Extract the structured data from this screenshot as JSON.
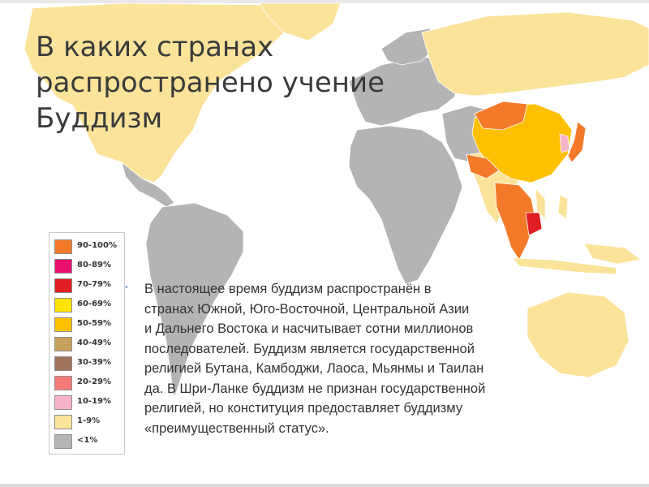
{
  "slide": {
    "title_lines": [
      "В каких странах",
      "распространено учение",
      "Буддизм"
    ],
    "bullet_char": "•",
    "paragraph_lines": [
      "В настоящее время буддизм распространён в",
      "странах Южной, Юго-Восточной, Центральной Азии",
      "и Дальнего Востока и насчитывает сотни миллионов",
      "последователей. Буддизм является государственной",
      "религией Бутана, Камбоджи, Лаоса, Мьянмы и Таилан",
      "да. В Шри-Ланке буддизм не признан государственной",
      "религией, но конституция предоставляет буддизму",
      "«преимущественный статус»."
    ]
  },
  "legend": {
    "items": [
      {
        "label": "90-100%",
        "color": "#f47a2a"
      },
      {
        "label": "80-89%",
        "color": "#e8106a"
      },
      {
        "label": "70-79%",
        "color": "#e01c24"
      },
      {
        "label": "60-69%",
        "color": "#ffe400"
      },
      {
        "label": "50-59%",
        "color": "#ffc000"
      },
      {
        "label": "40-49%",
        "color": "#c8a15c"
      },
      {
        "label": "30-39%",
        "color": "#a0735a"
      },
      {
        "label": "20-29%",
        "color": "#f47a7a"
      },
      {
        "label": "10-19%",
        "color": "#f7b3c8"
      },
      {
        "label": "1-9%",
        "color": "#fbe39a"
      },
      {
        "label": "<1%",
        "color": "#b4b4b4"
      }
    ]
  },
  "map": {
    "colors": {
      "none": "#b4b4b4",
      "low": "#fbe39a",
      "majority": "#ffc000",
      "dominant": "#f47a2a",
      "high": "#e01c24",
      "pink": "#f7b3c8"
    }
  }
}
